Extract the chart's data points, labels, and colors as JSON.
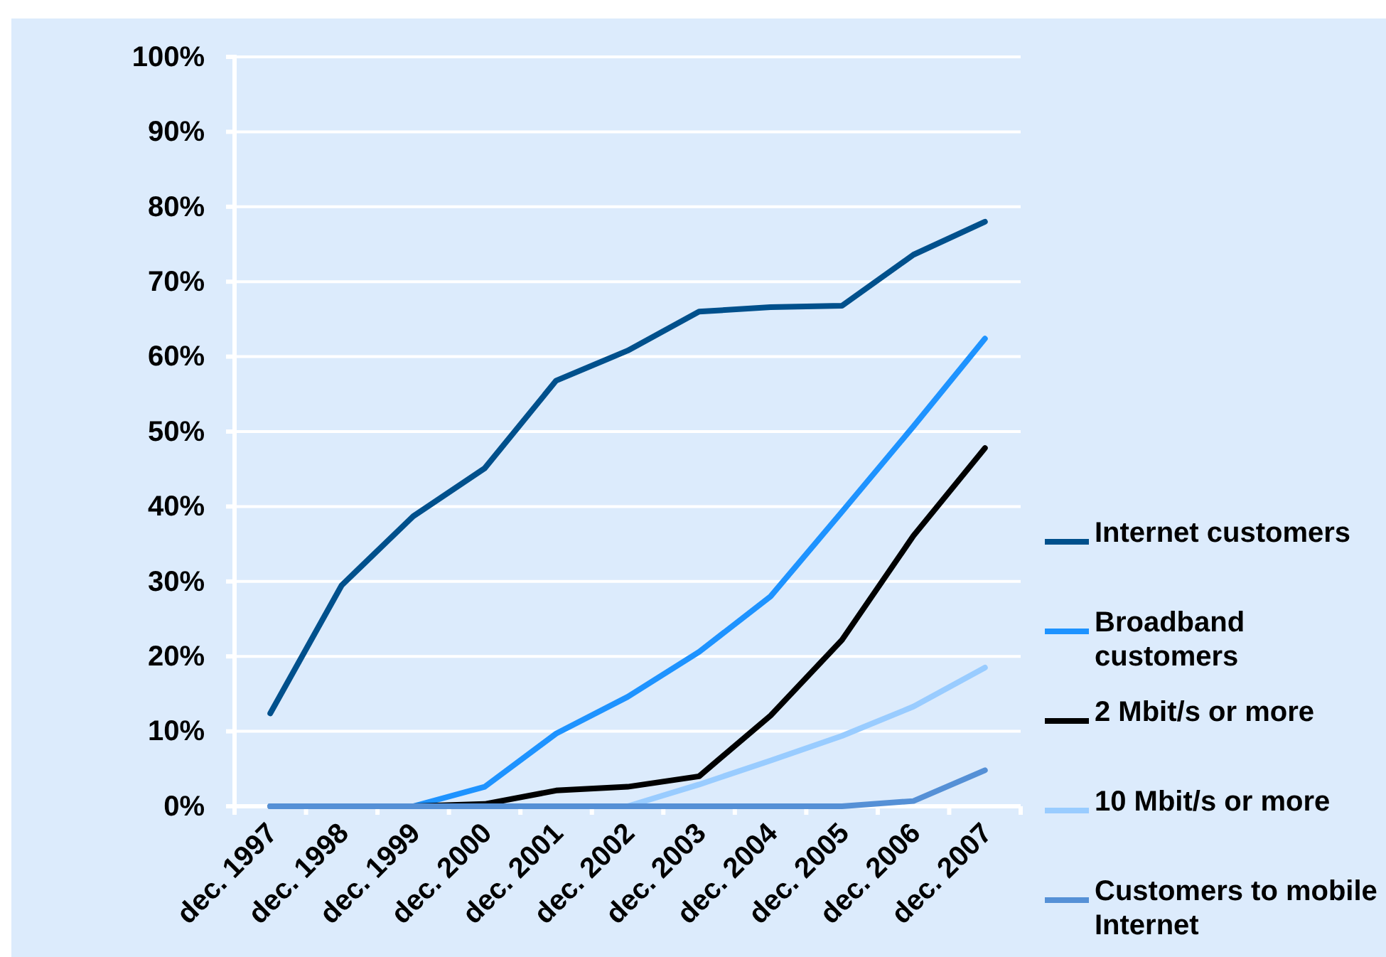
{
  "chart_data": {
    "type": "line",
    "categories": [
      "dec. 1997",
      "dec. 1998",
      "dec. 1999",
      "dec. 2000",
      "dec. 2001",
      "dec. 2002",
      "dec. 2003",
      "dec. 2004",
      "dec. 2005",
      "dec. 2006",
      "dec. 2007"
    ],
    "ylim": [
      0,
      100
    ],
    "yticks": [
      {
        "value": 0,
        "label": "0%"
      },
      {
        "value": 10,
        "label": "10%"
      },
      {
        "value": 20,
        "label": "20%"
      },
      {
        "value": 30,
        "label": "30%"
      },
      {
        "value": 40,
        "label": "40%"
      },
      {
        "value": 50,
        "label": "50%"
      },
      {
        "value": 60,
        "label": "60%"
      },
      {
        "value": 70,
        "label": "70%"
      },
      {
        "value": 80,
        "label": "80%"
      },
      {
        "value": 90,
        "label": "90%"
      },
      {
        "value": 100,
        "label": "100%"
      }
    ],
    "grid": "y",
    "legend": "right",
    "line_style": "solid",
    "series": [
      {
        "name": "Internet customers",
        "color": "#00508c",
        "values": [
          12.4,
          29.5,
          38.7,
          45.1,
          56.8,
          60.8,
          66.0,
          66.6,
          66.8,
          73.6,
          78.0
        ]
      },
      {
        "name": "Broadband customers",
        "color": "#1e93ff",
        "values": [
          0,
          0,
          0,
          2.6,
          9.7,
          14.6,
          20.6,
          28.0,
          39.3,
          50.7,
          62.4
        ]
      },
      {
        "name": "2 Mbit/s or more",
        "color": "#000000",
        "values": [
          0,
          0,
          0,
          0.3,
          2.1,
          2.6,
          4.0,
          12.1,
          22.2,
          36.1,
          47.8
        ]
      },
      {
        "name": "10 Mbit/s or more",
        "color": "#99ccff",
        "values": [
          0,
          0,
          0,
          0,
          0,
          0,
          2.9,
          6.1,
          9.4,
          13.3,
          18.5
        ]
      },
      {
        "name": "Customers to mobile Internet",
        "color": "#5590d6",
        "values": [
          0,
          0,
          0,
          0,
          0,
          0,
          0,
          0,
          0,
          0.7,
          4.8
        ]
      }
    ]
  }
}
